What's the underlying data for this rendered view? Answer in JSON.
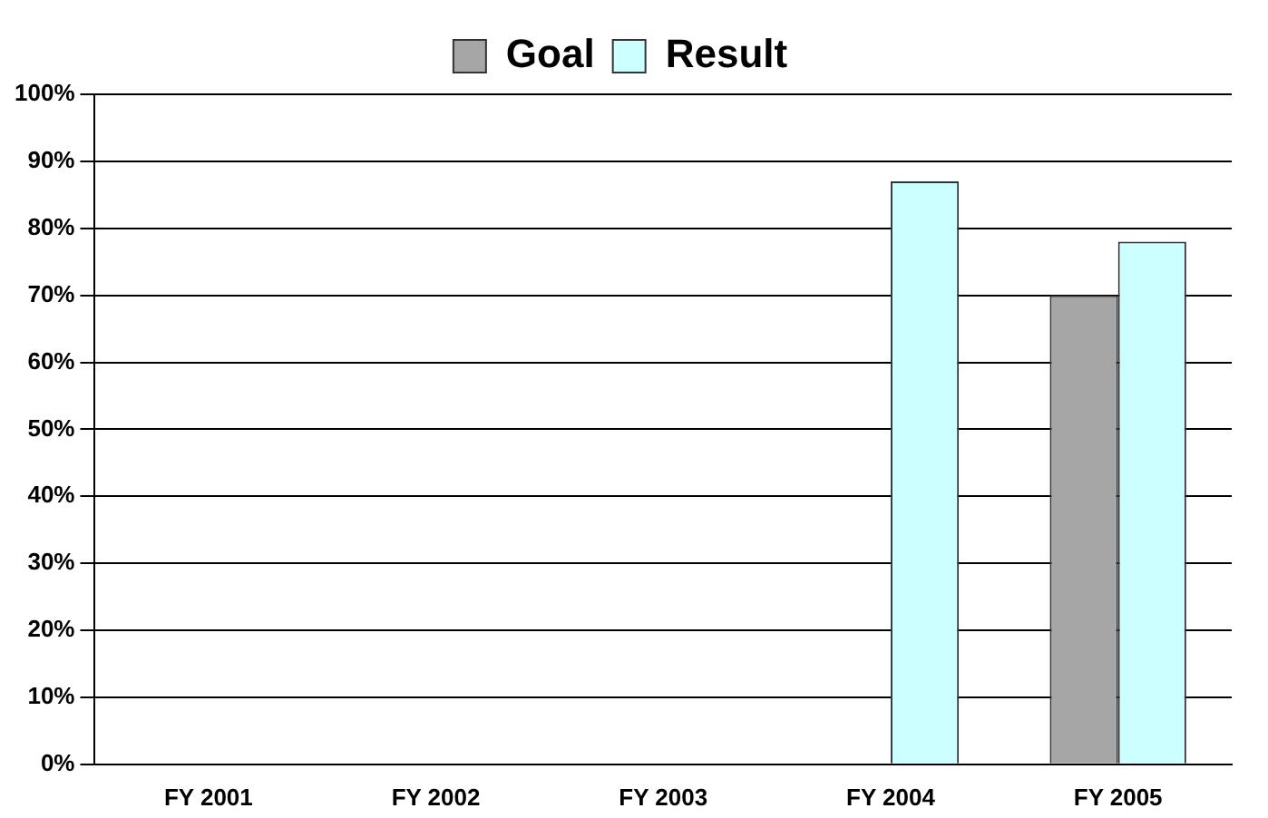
{
  "chart_data": {
    "type": "bar",
    "categories": [
      "FY 2001",
      "FY 2002",
      "FY 2003",
      "FY 2004",
      "FY 2005"
    ],
    "series": [
      {
        "name": "Goal",
        "color": "#a6a6a6",
        "values": [
          null,
          null,
          null,
          null,
          70
        ]
      },
      {
        "name": "Result",
        "color": "#ccffff",
        "values": [
          null,
          null,
          null,
          87,
          78
        ]
      }
    ],
    "ylim": [
      0,
      100
    ],
    "yticks": [
      {
        "value": 0,
        "label": "0%"
      },
      {
        "value": 10,
        "label": "10%"
      },
      {
        "value": 20,
        "label": "20%"
      },
      {
        "value": 30,
        "label": "30%"
      },
      {
        "value": 40,
        "label": "40%"
      },
      {
        "value": 50,
        "label": "50%"
      },
      {
        "value": 60,
        "label": "60%"
      },
      {
        "value": 70,
        "label": "70%"
      },
      {
        "value": 80,
        "label": "80%"
      },
      {
        "value": 90,
        "label": "90%"
      },
      {
        "value": 100,
        "label": "100%"
      }
    ],
    "grid": "y",
    "legend": "top"
  }
}
